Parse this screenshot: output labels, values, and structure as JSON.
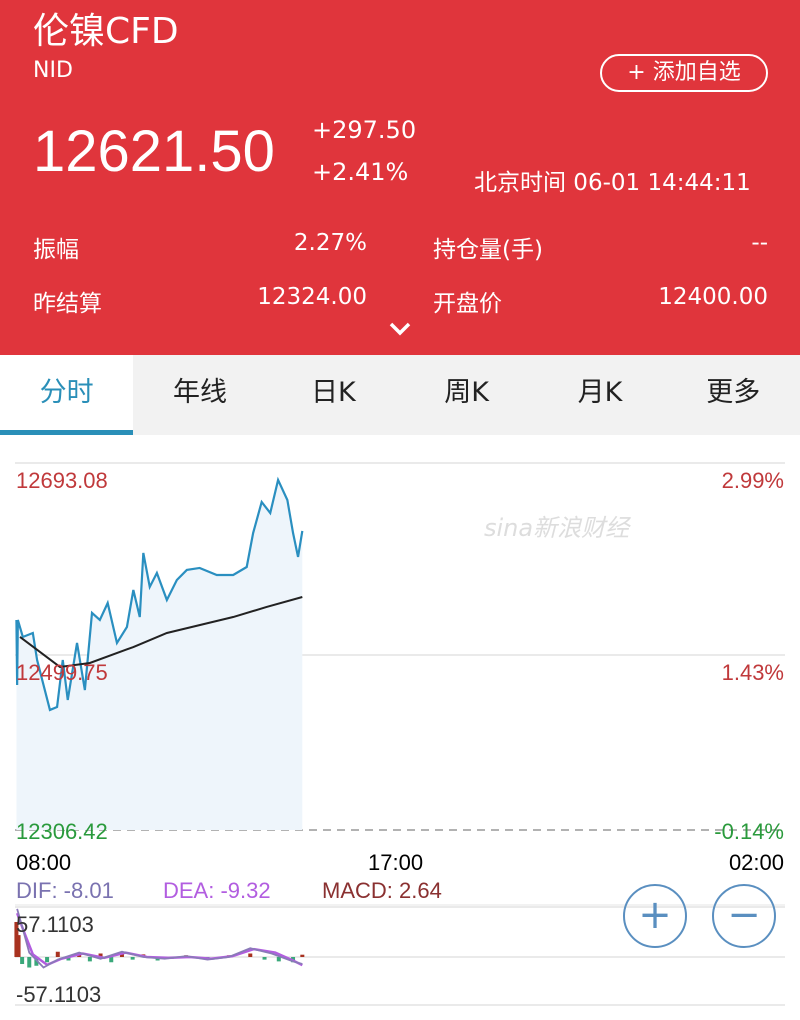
{
  "header": {
    "title": "伦镍CFD",
    "code": "NID",
    "add_watchlist": "+ 添加自选",
    "price": "12621.50",
    "change": "+297.50",
    "change_pct": "+2.41%",
    "time": "北京时间 06-01 14:44:11",
    "stats": [
      {
        "label": "振幅",
        "value": "2.27%"
      },
      {
        "label": "持仓量(手)",
        "value": "--"
      },
      {
        "label": "昨结算",
        "value": "12324.00"
      },
      {
        "label": "开盘价",
        "value": "12400.00"
      }
    ],
    "expand_icon": "chevron-down-icon"
  },
  "tabs": [
    {
      "label": "分时",
      "active": true
    },
    {
      "label": "年线"
    },
    {
      "label": "日K"
    },
    {
      "label": "周K"
    },
    {
      "label": "月K"
    },
    {
      "label": "更多"
    }
  ],
  "watermark": "sina新浪财经",
  "colors": {
    "header": "#e0353c",
    "accent": "#2a8fb8",
    "up": "#c0393b",
    "down": "#2a9a3c",
    "price_line": "#2a8fc0",
    "avg_line": "#222222",
    "dif": "#8a7ab8",
    "dea": "#b25de0"
  },
  "chart_data": [
    {
      "type": "line",
      "x_ticks": [
        "08:00",
        "17:00",
        "02:00"
      ],
      "y_labels_left": [
        "12693.08",
        "12499.75",
        "12306.42"
      ],
      "y_labels_right": [
        "2.99%",
        "1.43%",
        "-0.14%"
      ],
      "ylim": [
        12306.42,
        12693.08
      ],
      "xlim": [
        "08:00",
        "02:00"
      ],
      "series": [
        {
          "role": "price",
          "points": [
            [
              "08:02",
              12527.7
            ],
            [
              "08:03",
              12459.2
            ],
            [
              "08:04",
              12527.7
            ],
            [
              "08:11",
              12509.8
            ],
            [
              "08:25",
              12514.0
            ],
            [
              "08:31",
              12485.5
            ],
            [
              "08:49",
              12432.9
            ],
            [
              "08:59",
              12436.0
            ],
            [
              "09:07",
              12485.5
            ],
            [
              "09:14",
              12443.4
            ],
            [
              "09:27",
              12503.5
            ],
            [
              "09:38",
              12453.9
            ],
            [
              "09:48",
              12535.1
            ],
            [
              "09:59",
              12527.7
            ],
            [
              "10:10",
              12545.6
            ],
            [
              "10:23",
              12503.5
            ],
            [
              "10:37",
              12520.3
            ],
            [
              "10:46",
              12559.3
            ],
            [
              "10:55",
              12530.8
            ],
            [
              "11:00",
              12598.3
            ],
            [
              "11:09",
              12562.5
            ],
            [
              "11:19",
              12577.2
            ],
            [
              "11:33",
              12548.8
            ],
            [
              "11:47",
              12569.8
            ],
            [
              "12:01",
              12580.4
            ],
            [
              "12:19",
              12582.5
            ],
            [
              "12:43",
              12575.1
            ],
            [
              "13:06",
              12575.1
            ],
            [
              "13:25",
              12583.5
            ],
            [
              "13:34",
              12619.3
            ],
            [
              "13:46",
              12652.0
            ],
            [
              "13:58",
              12640.4
            ],
            [
              "14:09",
              12675.2
            ],
            [
              "14:22",
              12654.1
            ],
            [
              "14:30",
              12619.3
            ],
            [
              "14:37",
              12594.1
            ],
            [
              "14:43",
              12621.5
            ]
          ]
        },
        {
          "role": "average",
          "points": [
            [
              "08:07",
              12509.8
            ],
            [
              "09:03",
              12478.2
            ],
            [
              "09:45",
              12482.4
            ],
            [
              "10:46",
              12499.2
            ],
            [
              "11:33",
              12514.0
            ],
            [
              "13:06",
              12530.8
            ],
            [
              "13:53",
              12541.4
            ],
            [
              "14:43",
              12551.9
            ]
          ]
        }
      ]
    },
    {
      "type": "line",
      "title": "",
      "labels": {
        "dif": "DIF: -8.01",
        "dea": "DEA: -9.32",
        "macd": "MACD: 2.64"
      },
      "y_labels": [
        "57.1103",
        "-57.1103"
      ],
      "ylim": [
        -57.1103,
        57.1103
      ],
      "dif": [
        [
          "08:03",
          55
        ],
        [
          "08:10",
          35
        ],
        [
          "08:20",
          5
        ],
        [
          "08:40",
          -12
        ],
        [
          "09:00",
          -3
        ],
        [
          "09:30",
          5
        ],
        [
          "10:00",
          -2
        ],
        [
          "10:30",
          6
        ],
        [
          "11:00",
          0
        ],
        [
          "11:30",
          -2
        ],
        [
          "12:00",
          1
        ],
        [
          "12:30",
          -3
        ],
        [
          "13:00",
          0
        ],
        [
          "13:30",
          10
        ],
        [
          "14:00",
          4
        ],
        [
          "14:30",
          -5
        ],
        [
          "14:43",
          -8.01
        ]
      ],
      "dea": [
        [
          "08:03",
          50
        ],
        [
          "08:12",
          30
        ],
        [
          "08:25",
          3
        ],
        [
          "08:45",
          -9
        ],
        [
          "09:05",
          -2
        ],
        [
          "09:35",
          4
        ],
        [
          "10:05",
          -1
        ],
        [
          "10:35",
          5
        ],
        [
          "11:05",
          0
        ],
        [
          "11:35",
          -1
        ],
        [
          "12:05",
          0
        ],
        [
          "12:35",
          -2
        ],
        [
          "13:05",
          1
        ],
        [
          "13:35",
          9
        ],
        [
          "14:05",
          5
        ],
        [
          "14:30",
          -4
        ],
        [
          "14:43",
          -9.32
        ]
      ],
      "histogram": [
        [
          "08:02",
          40
        ],
        [
          "08:05",
          25
        ],
        [
          "08:10",
          -8
        ],
        [
          "08:20",
          -12
        ],
        [
          "08:30",
          -10
        ],
        [
          "08:45",
          -6
        ],
        [
          "09:00",
          6
        ],
        [
          "09:15",
          -4
        ],
        [
          "09:30",
          5
        ],
        [
          "09:45",
          -5
        ],
        [
          "10:00",
          4
        ],
        [
          "10:15",
          -6
        ],
        [
          "10:30",
          6
        ],
        [
          "10:45",
          -3
        ],
        [
          "11:00",
          3
        ],
        [
          "11:20",
          -4
        ],
        [
          "11:40",
          -2
        ],
        [
          "12:00",
          2
        ],
        [
          "12:30",
          -2
        ],
        [
          "13:00",
          2
        ],
        [
          "13:30",
          4
        ],
        [
          "13:50",
          -3
        ],
        [
          "14:10",
          -5
        ],
        [
          "14:30",
          -6
        ],
        [
          "14:43",
          2.64
        ]
      ]
    }
  ],
  "zoom_in_icon": "plus-circle-icon",
  "zoom_out_icon": "minus-circle-icon"
}
